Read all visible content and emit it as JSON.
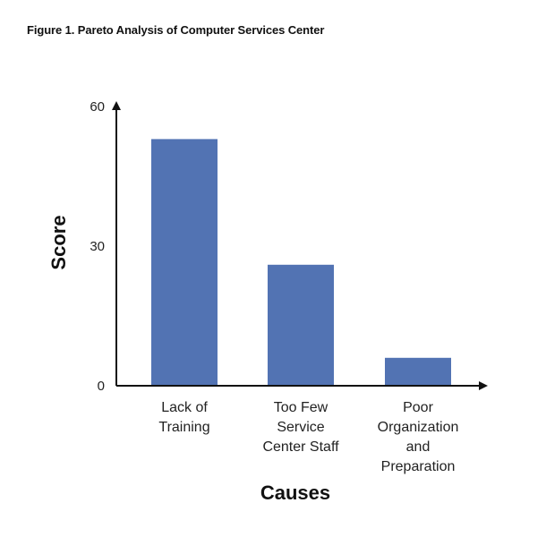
{
  "figure": {
    "title": "Figure 1. Pareto Analysis of Computer Services Center"
  },
  "chart_data": {
    "type": "bar",
    "title": "Figure 1. Pareto Analysis of Computer Services Center",
    "categories": [
      [
        "Lack of",
        "Training"
      ],
      [
        "Too Few",
        "Service",
        "Center Staff"
      ],
      [
        "Poor",
        "Organization",
        "and",
        "Preparation"
      ]
    ],
    "values": [
      53,
      26,
      6
    ],
    "xlabel": "Causes",
    "ylabel": "Score",
    "ylim": [
      0,
      60
    ],
    "yticks": [
      0,
      30,
      60
    ],
    "grid": false,
    "bar_color": "#5273b3",
    "axis_color": "#111111"
  }
}
